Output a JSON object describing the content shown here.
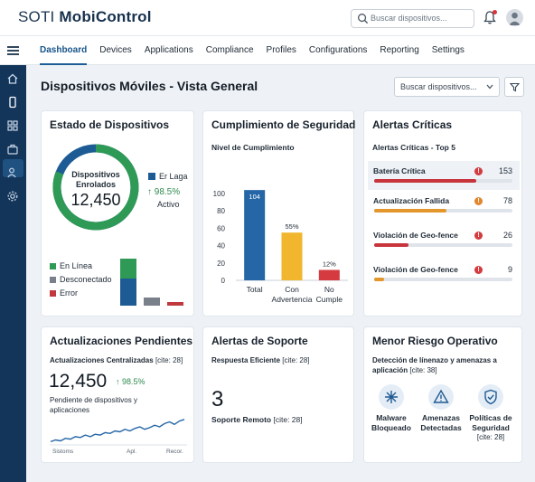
{
  "app": {
    "brand_pre": "SOTI ",
    "brand": "MobiControl"
  },
  "header": {
    "search_placeholder": "Buscar dispositivos..."
  },
  "nav": {
    "tabs": [
      {
        "label": "Dashboard"
      },
      {
        "label": "Devices"
      },
      {
        "label": "Applications"
      },
      {
        "label": "Compliance"
      },
      {
        "label": "Profiles"
      },
      {
        "label": "Configurations"
      },
      {
        "label": "Reporting"
      },
      {
        "label": "Settings"
      }
    ]
  },
  "sidebar": {
    "icons": [
      "home-icon",
      "mobile-device-icon",
      "apps-grid-icon",
      "briefcase-icon",
      "users-icon",
      "settings-icon"
    ]
  },
  "page": {
    "title": "Dispositivos Móviles - Vista General",
    "filter_placeholder": "Buscar dispositivos..."
  },
  "estado": {
    "title": "Estado de Dispositivos",
    "donut_label_1": "Dispositivos",
    "donut_label_2": "Enrolados",
    "donut_value": "12,450",
    "legend_top": "Er Laga",
    "trend": "↑ 98.5%",
    "trend_label": "Activo",
    "legend": [
      {
        "label": "En Línea",
        "color": "#2f9a56"
      },
      {
        "label": "Desconectado",
        "color": "#7a8089"
      },
      {
        "label": "Error",
        "color": "#c0393f"
      }
    ],
    "colors": {
      "online": "#2f9a56",
      "enrolled": "#1c5b94",
      "offline": "#7a8089",
      "error": "#c0393f"
    }
  },
  "cumplimiento": {
    "title": "Cumplimiento de Seguridad",
    "subtitle": "Nivel de Cumplimiento"
  },
  "chart_data": {
    "type": "bar",
    "categories": [
      "Total",
      "Con Advertencia",
      "No Cumple"
    ],
    "category_lines": [
      [
        "Total"
      ],
      [
        "Con",
        "Advertencia"
      ],
      [
        "No",
        "Cumple"
      ]
    ],
    "values": [
      104,
      55,
      12
    ],
    "data_labels": [
      "104",
      "55%",
      "12%"
    ],
    "colors": [
      "#2466a6",
      "#f1b62e",
      "#d43a3f"
    ],
    "title": "Nivel de Cumplimiento",
    "ylim": [
      0,
      125
    ],
    "yticks": [
      0,
      20,
      40,
      60,
      80,
      100
    ],
    "grid": false
  },
  "alertas": {
    "title": "Alertas Críticas",
    "subtitle": "Alertas Críticas - Top 5",
    "items": [
      {
        "label": "Batería Crítica",
        "count": "153",
        "fill": 0.74,
        "color": "#c8343b",
        "dot": "#d33b3f"
      },
      {
        "label": "Actualización Fallida",
        "count": "78",
        "fill": 0.52,
        "color": "#e3962c",
        "dot": "#e0862d"
      },
      {
        "label": "Violación de Geo-fence",
        "count": "26",
        "fill": 0.25,
        "color": "#c8343b",
        "dot": "#d33b3f"
      },
      {
        "label": "Violación de Geo-fence",
        "count": "9",
        "fill": 0.07,
        "color": "#e3962c",
        "dot": "#d33b3f"
      }
    ]
  },
  "actualizaciones": {
    "title": "Actualizaciones Pendientes",
    "subtitle": "Actualizaciones Centralizadas",
    "cite": "[cite: 28]",
    "value": "12,450",
    "trend": "↑ 98.5%",
    "desc_1": "Pendiente de dispositivos y",
    "desc_2": "aplicaciones",
    "axis": [
      "Sistoms",
      "Apl.",
      "Recor."
    ],
    "sparkline": [
      18,
      20,
      19,
      22,
      21,
      24,
      23,
      26,
      24,
      27,
      26,
      29,
      28,
      31,
      30,
      33,
      31,
      34,
      36,
      33,
      35,
      38,
      36,
      40,
      42,
      39,
      43,
      45
    ]
  },
  "soporte": {
    "title": "Alertas de Soporte",
    "subtitle": "Respuesta Eficiente",
    "cite": "[cite: 28]",
    "value": "3",
    "label": "Soporte Remoto",
    "label_cite": "[cite: 28]"
  },
  "riesgo": {
    "title": "Menor Riesgo Operativo",
    "desc_1": "Detección de línenazo y amenazas a",
    "desc_2": "aplicación",
    "desc_cite": "[cite: 38]",
    "items": [
      {
        "icon": "malware-blocked-icon",
        "l1": "Malware",
        "l2": "Bloqueado",
        "l3": ""
      },
      {
        "icon": "warning-triangle-icon",
        "l1": "Amenazas",
        "l2": "Detectadas",
        "l3": ""
      },
      {
        "icon": "shield-check-icon",
        "l1": "Políticas de",
        "l2": "Seguridad",
        "l3": "[cite: 28]"
      }
    ]
  }
}
